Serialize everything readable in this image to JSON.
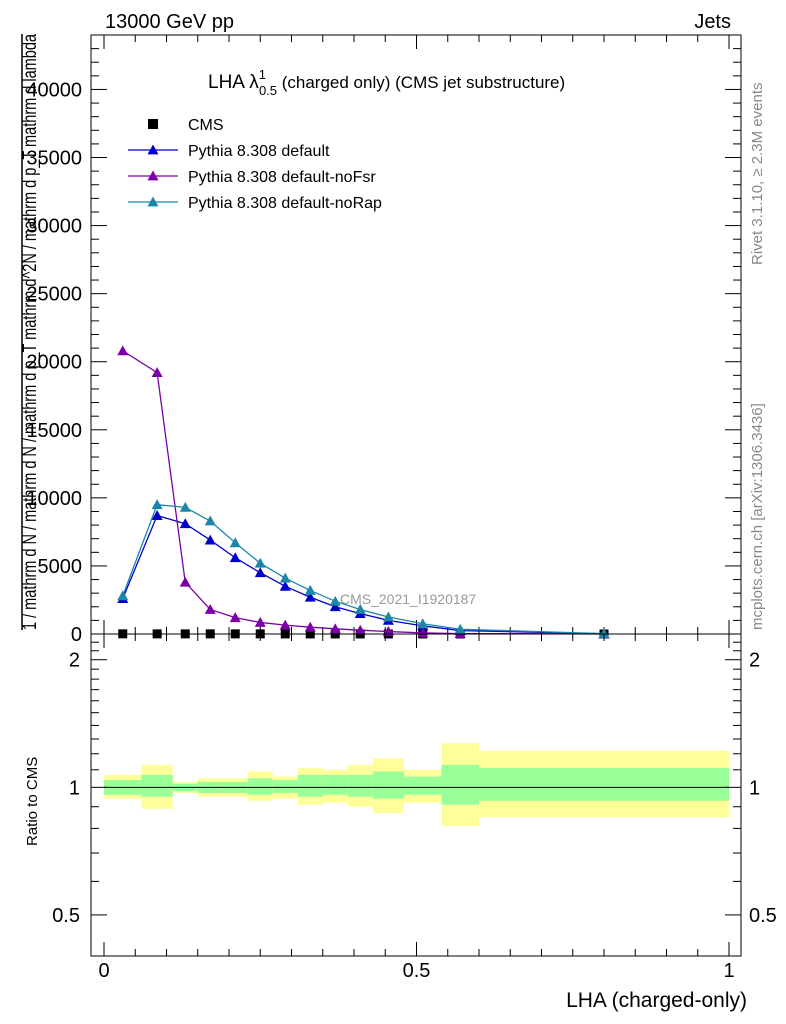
{
  "header": {
    "energy": "13000 GeV pp",
    "process": "Jets"
  },
  "side_labels": {
    "rivet": "Rivet 3.1.10, ≥ 2.3M events",
    "mcplots": "mcplots.cern.ch [arXiv:1306.3436]"
  },
  "chart_data": {
    "type": "line",
    "title": {
      "prefix": "LHA λ",
      "sup": "1",
      "sub": "0.5",
      "suffix": " (charged only) (CMS jet substructure)"
    },
    "ylabel": "1 / mathrm d N / mathrm d N / mathrm d p_T mathrm d^2N / mathrm d p_T mathrm d lambda",
    "xlabel": "LHA (charged-only)",
    "watermark": "CMS_2021_I1920187",
    "xlim": [
      0,
      1
    ],
    "ylim": [
      0,
      44000
    ],
    "yticks": [
      "0",
      "5000",
      "10000",
      "15000",
      "20000",
      "25000",
      "30000",
      "35000",
      "40000"
    ],
    "xticks": [
      "0",
      "0.5",
      "1"
    ],
    "x_bins": [
      0.0,
      0.06,
      0.11,
      0.15,
      0.19,
      0.23,
      0.27,
      0.31,
      0.35,
      0.39,
      0.43,
      0.48,
      0.54,
      0.6,
      1.0
    ],
    "x": [
      0.03,
      0.085,
      0.13,
      0.17,
      0.21,
      0.25,
      0.29,
      0.33,
      0.37,
      0.41,
      0.455,
      0.51,
      0.57,
      0.8
    ],
    "legend_position": "top-left",
    "series": [
      {
        "name": "CMS",
        "color": "#000000",
        "marker": "square",
        "values": [
          12,
          8,
          8,
          10,
          10,
          8,
          6,
          5,
          4,
          3,
          2,
          1,
          1,
          0
        ]
      },
      {
        "name": "Pythia 8.308 default",
        "color": "#0000cc",
        "marker": "triangle",
        "values": [
          2600,
          8700,
          8100,
          6900,
          5600,
          4500,
          3500,
          2700,
          2000,
          1500,
          1000,
          600,
          250,
          20
        ]
      },
      {
        "name": "Pythia 8.308 default-noFsr",
        "color": "#7b00a8",
        "marker": "triangle",
        "values": [
          20800,
          19200,
          3800,
          1800,
          1200,
          850,
          650,
          500,
          380,
          280,
          180,
          80,
          30,
          5
        ]
      },
      {
        "name": "Pythia 8.308 default-noRap",
        "color": "#1a87a8",
        "marker": "triangle",
        "values": [
          2800,
          9500,
          9300,
          8300,
          6700,
          5200,
          4100,
          3200,
          2400,
          1800,
          1250,
          750,
          350,
          30
        ]
      }
    ],
    "ratio": {
      "ylabel": "Ratio to CMS",
      "scale": "log",
      "ylim": [
        0.4,
        2.3
      ],
      "yticks": [
        "0.5",
        "1",
        "2"
      ],
      "band_green_hex": "#99ff99",
      "band_yellow_hex": "#ffff99",
      "bins": [
        {
          "xlo": 0.0,
          "xhi": 0.06,
          "g_lo": 0.96,
          "g_hi": 1.04,
          "y_lo": 0.94,
          "y_hi": 1.07
        },
        {
          "xlo": 0.06,
          "xhi": 0.11,
          "g_lo": 0.95,
          "g_hi": 1.07,
          "y_lo": 0.89,
          "y_hi": 1.13
        },
        {
          "xlo": 0.11,
          "xhi": 0.15,
          "g_lo": 0.98,
          "g_hi": 1.02,
          "y_lo": 0.97,
          "y_hi": 1.03
        },
        {
          "xlo": 0.15,
          "xhi": 0.19,
          "g_lo": 0.97,
          "g_hi": 1.03,
          "y_lo": 0.95,
          "y_hi": 1.05
        },
        {
          "xlo": 0.19,
          "xhi": 0.23,
          "g_lo": 0.97,
          "g_hi": 1.03,
          "y_lo": 0.95,
          "y_hi": 1.05
        },
        {
          "xlo": 0.23,
          "xhi": 0.27,
          "g_lo": 0.96,
          "g_hi": 1.05,
          "y_lo": 0.93,
          "y_hi": 1.09
        },
        {
          "xlo": 0.27,
          "xhi": 0.31,
          "g_lo": 0.97,
          "g_hi": 1.04,
          "y_lo": 0.94,
          "y_hi": 1.06
        },
        {
          "xlo": 0.31,
          "xhi": 0.35,
          "g_lo": 0.95,
          "g_hi": 1.07,
          "y_lo": 0.91,
          "y_hi": 1.11
        },
        {
          "xlo": 0.35,
          "xhi": 0.39,
          "g_lo": 0.96,
          "g_hi": 1.07,
          "y_lo": 0.92,
          "y_hi": 1.1
        },
        {
          "xlo": 0.39,
          "xhi": 0.43,
          "g_lo": 0.95,
          "g_hi": 1.07,
          "y_lo": 0.9,
          "y_hi": 1.13
        },
        {
          "xlo": 0.43,
          "xhi": 0.48,
          "g_lo": 0.94,
          "g_hi": 1.09,
          "y_lo": 0.87,
          "y_hi": 1.17
        },
        {
          "xlo": 0.48,
          "xhi": 0.54,
          "g_lo": 0.96,
          "g_hi": 1.06,
          "y_lo": 0.92,
          "y_hi": 1.1
        },
        {
          "xlo": 0.54,
          "xhi": 0.6,
          "g_lo": 0.91,
          "g_hi": 1.13,
          "y_lo": 0.81,
          "y_hi": 1.27
        },
        {
          "xlo": 0.6,
          "xhi": 1.0,
          "g_lo": 0.93,
          "g_hi": 1.11,
          "y_lo": 0.85,
          "y_hi": 1.22
        }
      ]
    }
  }
}
